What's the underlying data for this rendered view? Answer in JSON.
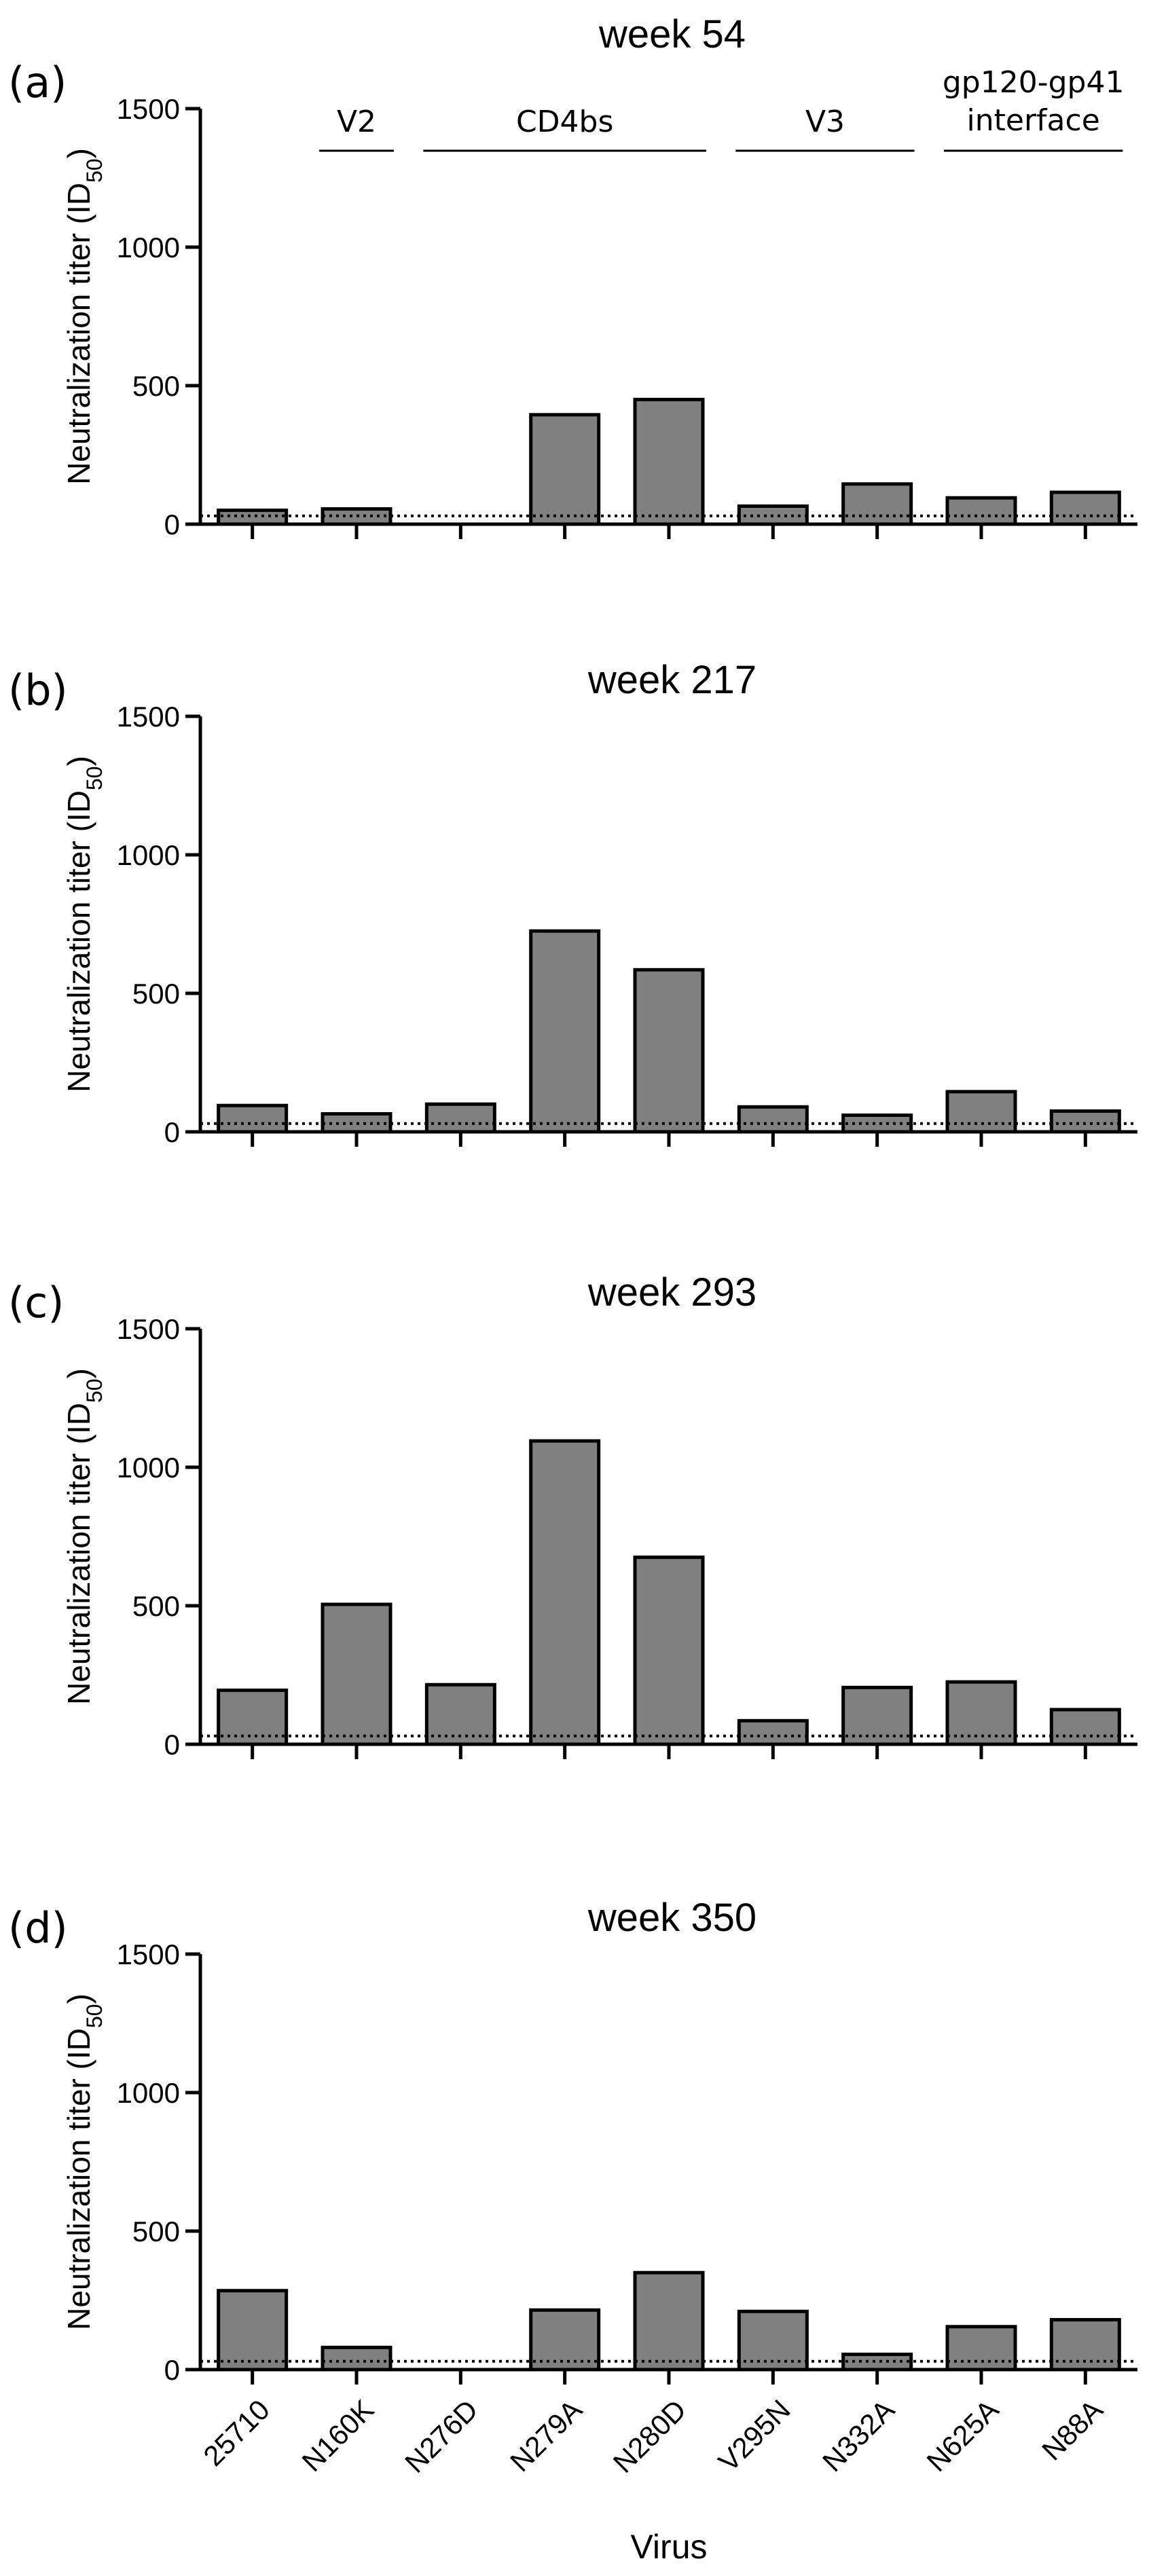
{
  "figure": {
    "region_labels": [
      {
        "label": "V2",
        "from": 1,
        "to": 1
      },
      {
        "label": "CD4bs",
        "from": 2,
        "to": 4
      },
      {
        "label": "V3",
        "from": 5,
        "to": 6
      },
      {
        "label": "gp120-gp41\ninterface",
        "from": 7,
        "to": 8
      }
    ],
    "x_axis_label": "Virus",
    "bar_color": "#808080",
    "threshold_value": 30
  },
  "chart_data": [
    {
      "type": "bar",
      "panel": "(a)",
      "title": "week 54",
      "ylabel": "Neutralization titer (ID50)",
      "ylim": [
        0,
        1500
      ],
      "yticks": [
        0,
        500,
        1000,
        1500
      ],
      "categories": [
        "25710",
        "N160K",
        "N276D",
        "N279A",
        "N280D",
        "V295N",
        "N332A",
        "N625A",
        "N88A"
      ],
      "values": [
        50,
        55,
        0,
        395,
        450,
        65,
        145,
        95,
        115
      ],
      "threshold": 30
    },
    {
      "type": "bar",
      "panel": "(b)",
      "title": "week 217",
      "ylabel": "Neutralization titer (ID50)",
      "ylim": [
        0,
        1500
      ],
      "yticks": [
        0,
        500,
        1000,
        1500
      ],
      "categories": [
        "25710",
        "N160K",
        "N276D",
        "N279A",
        "N280D",
        "V295N",
        "N332A",
        "N625A",
        "N88A"
      ],
      "values": [
        95,
        65,
        100,
        725,
        585,
        90,
        60,
        145,
        75
      ],
      "threshold": 30
    },
    {
      "type": "bar",
      "panel": "(c)",
      "title": "week 293",
      "ylabel": "Neutralization titer (ID50)",
      "ylim": [
        0,
        1500
      ],
      "yticks": [
        0,
        500,
        1000,
        1500
      ],
      "categories": [
        "25710",
        "N160K",
        "N276D",
        "N279A",
        "N280D",
        "V295N",
        "N332A",
        "N625A",
        "N88A"
      ],
      "values": [
        195,
        505,
        215,
        1095,
        675,
        85,
        205,
        225,
        125
      ],
      "threshold": 30
    },
    {
      "type": "bar",
      "panel": "(d)",
      "title": "week 350",
      "ylabel": "Neutralization titer (ID50)",
      "ylim": [
        0,
        1500
      ],
      "yticks": [
        0,
        500,
        1000,
        1500
      ],
      "categories": [
        "25710",
        "N160K",
        "N276D",
        "N279A",
        "N280D",
        "V295N",
        "N332A",
        "N625A",
        "N88A"
      ],
      "values": [
        285,
        80,
        0,
        215,
        350,
        210,
        55,
        155,
        180
      ],
      "threshold": 30
    }
  ]
}
